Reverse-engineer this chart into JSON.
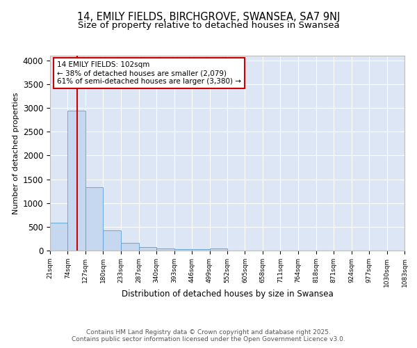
{
  "title_line1": "14, EMILY FIELDS, BIRCHGROVE, SWANSEA, SA7 9NJ",
  "title_line2": "Size of property relative to detached houses in Swansea",
  "xlabel": "Distribution of detached houses by size in Swansea",
  "ylabel": "Number of detached properties",
  "bar_color": "#c5d8f0",
  "bar_edge_color": "#5a9fd4",
  "background_color": "#dce6f5",
  "annotation_text": "14 EMILY FIELDS: 102sqm\n← 38% of detached houses are smaller (2,079)\n61% of semi-detached houses are larger (3,380) →",
  "annotation_box_color": "#ffffff",
  "annotation_box_edge": "#cc0000",
  "property_line_color": "#cc0000",
  "property_line_x": 102,
  "footer_text": "Contains HM Land Registry data © Crown copyright and database right 2025.\nContains public sector information licensed under the Open Government Licence v3.0.",
  "bin_edges": [
    21,
    74,
    127,
    180,
    233,
    287,
    340,
    393,
    446,
    499,
    552,
    605,
    658,
    711,
    764,
    818,
    871,
    924,
    977,
    1030,
    1083
  ],
  "bin_heights": [
    590,
    2950,
    1330,
    420,
    160,
    75,
    50,
    30,
    25,
    50,
    0,
    0,
    0,
    0,
    0,
    0,
    0,
    0,
    0,
    0
  ],
  "ylim": [
    0,
    4100
  ],
  "yticks": [
    0,
    500,
    1000,
    1500,
    2000,
    2500,
    3000,
    3500,
    4000
  ],
  "grid_color": "#ffffff",
  "title_fontsize": 10.5,
  "subtitle_fontsize": 9.5,
  "tick_label_fontsize": 6.5,
  "ylabel_fontsize": 8,
  "xlabel_fontsize": 8.5
}
